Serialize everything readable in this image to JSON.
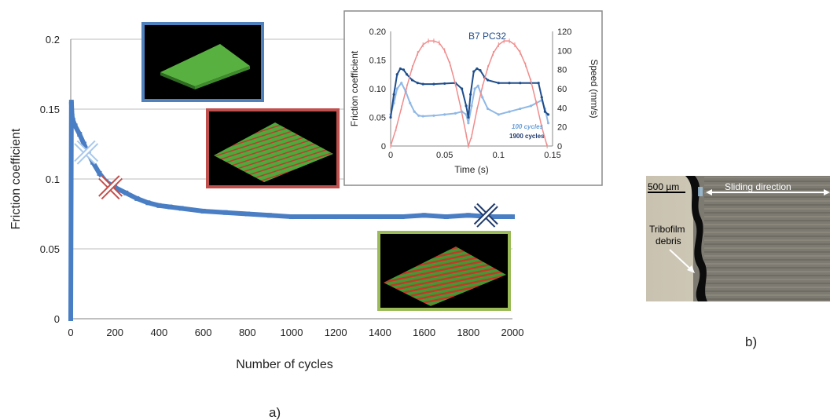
{
  "panel_a_label": "a)",
  "panel_b_label": "b)",
  "main_chart": {
    "ylabel": "Friction coefficient",
    "xlabel": "Number of cycles",
    "x_ticks": [
      "0",
      "200",
      "400",
      "600",
      "800",
      "1000",
      "1200",
      "1400",
      "1600",
      "1800",
      "2000"
    ],
    "y_ticks": [
      "0",
      "0.05",
      "0.1",
      "0.15",
      "0.2"
    ]
  },
  "inset_chart": {
    "title": "B7 PC32",
    "ylabel_left": "Friction coefficient",
    "ylabel_right": "Speed (mm/s)",
    "xlabel": "Time (s)",
    "x_ticks": [
      "0",
      "0.05",
      "0.1",
      "0.15"
    ],
    "y_left_ticks": [
      "0",
      "0.05",
      "0.10",
      "0.15",
      "0.20"
    ],
    "y_right_ticks": [
      "0",
      "20",
      "40",
      "60",
      "80",
      "100",
      "120"
    ],
    "legend": [
      "100 cycles",
      "1900 cycles"
    ]
  },
  "micrograph": {
    "scale_label": "500 µm",
    "direction_label": "Sliding direction",
    "annotation_line1": "Tribofilm",
    "annotation_line2": "debris"
  },
  "colors": {
    "main_series": "#4a7ec4",
    "marker_100": "#a9c9ec",
    "marker_200": "#c0504d",
    "marker_1900": "#1f3a6e",
    "frame_blue": "#4f81bd",
    "frame_red": "#c0504d",
    "frame_green": "#9bbb59",
    "speed": "#f08c8c",
    "friction_1900": "#1f4e8c",
    "friction_100": "#8fb8e6"
  },
  "chart_data": [
    {
      "type": "line",
      "xlabel": "Number of cycles",
      "ylabel": "Friction coefficient",
      "xlim": [
        0,
        2000
      ],
      "ylim": [
        0,
        0.2
      ],
      "grid": true,
      "series": [
        {
          "x": [
            0,
            3,
            6,
            10,
            20,
            40,
            60,
            80,
            100,
            130,
            160,
            200,
            250,
            300,
            350,
            400,
            450,
            500,
            600,
            700,
            800,
            900,
            1000,
            1100,
            1200,
            1300,
            1400,
            1500,
            1600,
            1700,
            1800,
            1900,
            2000
          ],
          "y": [
            0.0,
            0.155,
            0.145,
            0.142,
            0.138,
            0.132,
            0.125,
            0.118,
            0.112,
            0.104,
            0.098,
            0.094,
            0.09,
            0.086,
            0.083,
            0.081,
            0.08,
            0.079,
            0.077,
            0.076,
            0.075,
            0.074,
            0.073,
            0.073,
            0.073,
            0.073,
            0.073,
            0.073,
            0.074,
            0.073,
            0.074,
            0.073,
            0.073
          ]
        }
      ],
      "markers": [
        {
          "x": 70,
          "y": 0.119
        },
        {
          "x": 180,
          "y": 0.094
        },
        {
          "x": 1880,
          "y": 0.074
        }
      ]
    },
    {
      "type": "line",
      "title": "B7 PC32",
      "xlabel": "Time (s)",
      "ylabel": "Friction coefficient",
      "y2label": "Speed (mm/s)",
      "xlim": [
        0,
        0.15
      ],
      "ylim": [
        0,
        0.2
      ],
      "y2lim": [
        0,
        120
      ],
      "series": [
        {
          "name": "100 cycles",
          "axis": "left",
          "x": [
            0,
            0.003,
            0.006,
            0.01,
            0.014,
            0.018,
            0.022,
            0.026,
            0.03,
            0.04,
            0.05,
            0.06,
            0.066,
            0.07,
            0.072,
            0.075,
            0.078,
            0.081,
            0.085,
            0.09,
            0.1,
            0.11,
            0.12,
            0.13,
            0.135,
            0.14,
            0.143,
            0.146
          ],
          "y": [
            0.055,
            0.075,
            0.1,
            0.11,
            0.095,
            0.075,
            0.06,
            0.053,
            0.052,
            0.053,
            0.055,
            0.057,
            0.06,
            0.055,
            0.04,
            0.07,
            0.1,
            0.105,
            0.085,
            0.065,
            0.055,
            0.06,
            0.065,
            0.07,
            0.075,
            0.08,
            0.065,
            0.04
          ]
        },
        {
          "name": "1900 cycles",
          "axis": "left",
          "x": [
            0,
            0.003,
            0.006,
            0.009,
            0.012,
            0.015,
            0.02,
            0.025,
            0.03,
            0.04,
            0.05,
            0.06,
            0.066,
            0.07,
            0.072,
            0.074,
            0.077,
            0.08,
            0.083,
            0.087,
            0.09,
            0.1,
            0.11,
            0.12,
            0.13,
            0.137,
            0.14,
            0.143,
            0.146
          ],
          "y": [
            0.05,
            0.09,
            0.125,
            0.135,
            0.133,
            0.125,
            0.115,
            0.11,
            0.108,
            0.108,
            0.109,
            0.11,
            0.1,
            0.07,
            0.05,
            0.09,
            0.13,
            0.135,
            0.132,
            0.12,
            0.115,
            0.11,
            0.11,
            0.11,
            0.11,
            0.11,
            0.085,
            0.06,
            0.055
          ]
        },
        {
          "name": "Speed",
          "axis": "right",
          "x": [
            0,
            0.005,
            0.01,
            0.015,
            0.02,
            0.025,
            0.03,
            0.035,
            0.04,
            0.045,
            0.05,
            0.055,
            0.06,
            0.065,
            0.07,
            0.072,
            0.075,
            0.08,
            0.085,
            0.09,
            0.095,
            0.1,
            0.105,
            0.11,
            0.115,
            0.12,
            0.125,
            0.13,
            0.135,
            0.14,
            0.145
          ],
          "y": [
            0,
            18,
            40,
            62,
            82,
            97,
            106,
            110,
            110,
            108,
            100,
            86,
            65,
            40,
            12,
            0,
            10,
            38,
            62,
            82,
            97,
            106,
            110,
            110,
            106,
            98,
            85,
            68,
            45,
            20,
            0
          ]
        }
      ]
    }
  ]
}
